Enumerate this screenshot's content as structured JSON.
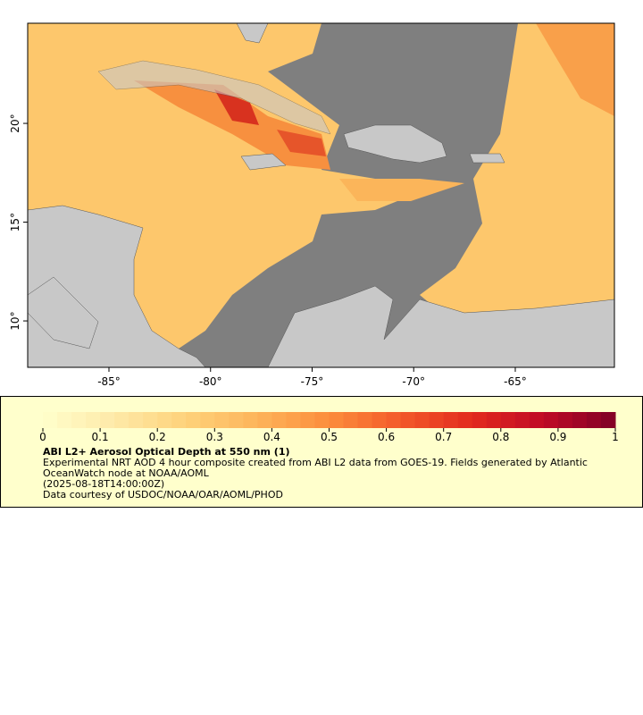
{
  "map": {
    "xlim": [
      -89,
      -60.12
    ],
    "ylim": [
      7.65,
      25.07
    ],
    "xticks": [
      {
        "value": -85,
        "label": "-85°"
      },
      {
        "value": -80,
        "label": "-80°"
      },
      {
        "value": -75,
        "label": "-75°"
      },
      {
        "value": -70,
        "label": "-70°"
      },
      {
        "value": -65,
        "label": "-65°"
      }
    ],
    "yticks": [
      {
        "value": 10,
        "label": "10°"
      },
      {
        "value": 15,
        "label": "15°"
      },
      {
        "value": 20,
        "label": "20°"
      }
    ]
  },
  "colorbar": {
    "range": [
      0,
      1
    ],
    "steps": 40,
    "colors": [
      "#ffffcc",
      "#fee9a8",
      "#fed27a",
      "#fdb45a",
      "#fc8d3c",
      "#f35a2a",
      "#e22a1e",
      "#bf0a26",
      "#800026"
    ],
    "ticks": [
      0,
      0.1,
      0.2,
      0.3,
      0.4,
      0.5,
      0.6,
      0.7,
      0.8,
      0.9,
      1
    ]
  },
  "legend": {
    "title": "ABI L2+ Aerosol Optical Depth at 550 nm (1)",
    "lines": [
      "Experimental NRT AOD 4 hour composite created from ABI L2 data from GOES-19. Fields generated by Atlantic OceanWatch node at NOAA/AOML",
      "(2025-08-18T14:00:00Z)",
      "Data courtesy of USDOC/NOAA/OAR/AOML/PHOD"
    ]
  }
}
